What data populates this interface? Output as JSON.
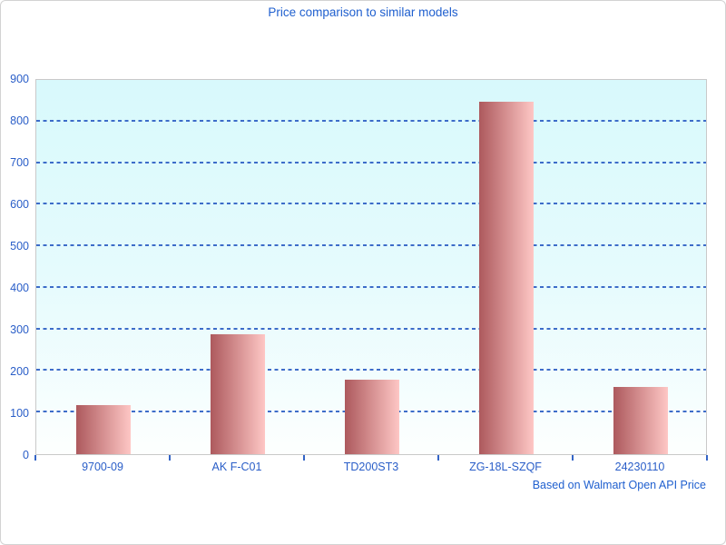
{
  "title": "Price comparison to similar models",
  "footer": "Based on Walmart Open API Price",
  "colors": {
    "text_blue": "#2a5ec8",
    "title_blue": "#2060cf",
    "gridline_blue": "#3465c6",
    "bar_gradient_left": "#ad595d",
    "bar_gradient_right": "#fec7c5",
    "plot_bg_top": "#d8f9fc",
    "plot_bg_bottom": "#fdfffe",
    "plot_border": "#c9c9c9"
  },
  "chart_data": {
    "type": "bar",
    "title": "Price comparison to similar models",
    "categories": [
      "9700-09",
      "AK F-C01",
      "TD200ST3",
      "ZG-18L-SZQF",
      "24230110"
    ],
    "values": [
      118,
      286,
      179,
      843,
      160
    ],
    "xlabel": "",
    "ylabel": "",
    "ylim": [
      0,
      900
    ],
    "ytick_step": 100,
    "yticks": [
      0,
      100,
      200,
      300,
      400,
      500,
      600,
      700,
      800,
      900
    ],
    "grid": "horizontal-dashed",
    "legend": "none",
    "annotation": "Based on Walmart Open API Price"
  }
}
